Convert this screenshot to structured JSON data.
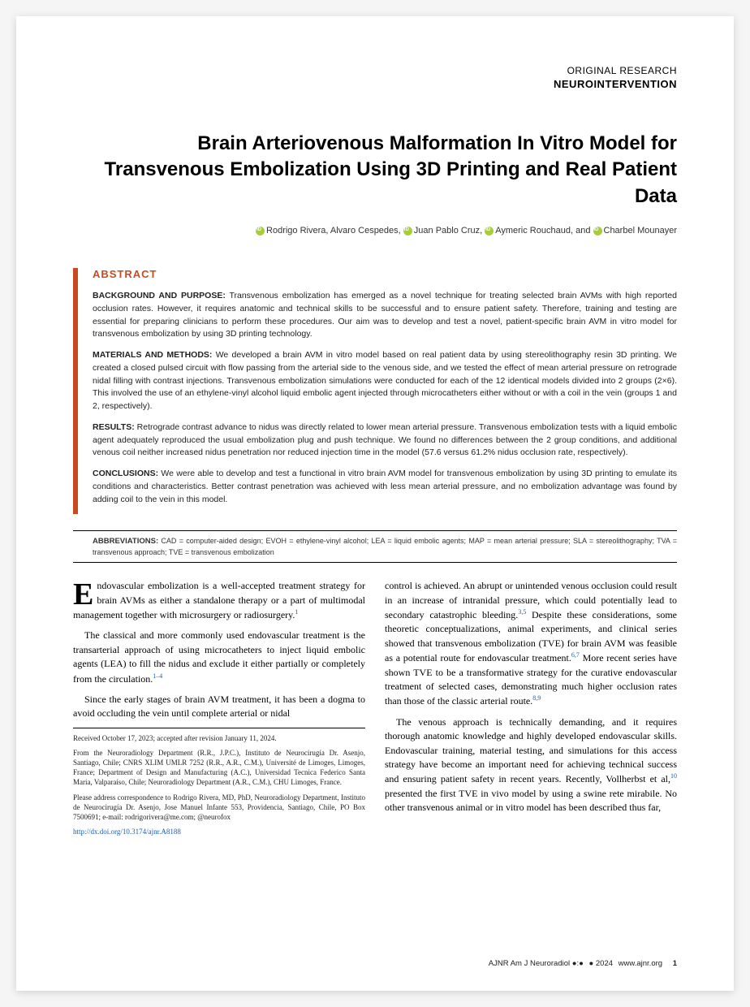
{
  "header": {
    "category": "ORIGINAL RESEARCH",
    "section": "NEUROINTERVENTION"
  },
  "title": "Brain Arteriovenous Malformation In Vitro Model for Transvenous Embolization Using 3D Printing and Real Patient Data",
  "authors": {
    "a1": "Rodrigo Rivera,",
    "a2": " Alvaro Cespedes, ",
    "a3": "Juan Pablo Cruz, ",
    "a4": "Aymeric Rouchaud,",
    "and": " and ",
    "a5": "Charbel Mounayer"
  },
  "abstract": {
    "heading": "ABSTRACT",
    "bg_label": "BACKGROUND AND PURPOSE:",
    "bg_text": " Transvenous embolization has emerged as a novel technique for treating selected brain AVMs with high reported occlusion rates. However, it requires anatomic and technical skills to be successful and to ensure patient safety. Therefore, training and testing are essential for preparing clinicians to perform these procedures. Our aim was to develop and test a novel, patient-specific brain AVM in vitro model for transvenous embolization by using 3D printing technology.",
    "mm_label": "MATERIALS AND METHODS:",
    "mm_text": " We developed a brain AVM in vitro model based on real patient data by using stereolithography resin 3D printing. We created a closed pulsed circuit with flow passing from the arterial side to the venous side, and we tested the effect of mean arterial pressure on retrograde nidal filling with contrast injections. Transvenous embolization simulations were conducted for each of the 12 identical models divided into 2 groups (2×6). This involved the use of an ethylene-vinyl alcohol liquid embolic agent injected through microcatheters either without or with a coil in the vein (groups 1 and 2, respectively).",
    "res_label": "RESULTS:",
    "res_text": " Retrograde contrast advance to nidus was directly related to lower mean arterial pressure. Transvenous embolization tests with a liquid embolic agent adequately reproduced the usual embolization plug and push technique. We found no differences between the 2 group conditions, and additional venous coil neither increased nidus penetration nor reduced injection time in the model (57.6 versus 61.2% nidus occlusion rate, respectively).",
    "con_label": "CONCLUSIONS:",
    "con_text": " We were able to develop and test a functional in vitro brain AVM model for transvenous embolization by using 3D printing to emulate its conditions and characteristics. Better contrast penetration was achieved with less mean arterial pressure, and no embolization advantage was found by adding coil to the vein in this model."
  },
  "abbrev": {
    "label": "ABBREVIATIONS:",
    "text": " CAD = computer-aided design; EVOH = ethylene-vinyl alcohol; LEA = liquid embolic agents; MAP = mean arterial pressure; SLA = stereolithography; TVA = transvenous approach; TVE = transvenous embolization"
  },
  "body": {
    "col1": {
      "p1_dropcap": "E",
      "p1": "ndovascular embolization is a well-accepted treatment strategy for brain AVMs as either a standalone therapy or a part of multimodal management together with microsurgery or radiosurgery.",
      "p1_ref": "1",
      "p2": "The classical and more commonly used endovascular treatment is the transarterial approach of using microcatheters to inject liquid embolic agents (LEA) to fill the nidus and exclude it either partially or completely from the circulation.",
      "p2_ref": "1–4",
      "p3": "Since the early stages of brain AVM treatment, it has been a dogma to avoid occluding the vein until complete arterial or nidal"
    },
    "col2": {
      "p1a": "control is achieved. An abrupt or unintended venous occlusion could result in an increase of intranidal pressure, which could potentially lead to secondary catastrophic bleeding.",
      "p1a_ref": "3,5",
      "p1b": " Despite these considerations, some theoretic conceptualizations, animal experiments, and clinical series showed that transvenous embolization (TVE) for brain AVM was feasible as a potential route for endovascular treatment.",
      "p1b_ref": "6,7",
      "p1c": " More recent series have shown TVE to be a transformative strategy for the curative endovascular treatment of selected cases, demonstrating much higher occlusion rates than those of the classic arterial route.",
      "p1c_ref": "8,9",
      "p2a": "The venous approach is technically demanding, and it requires thorough anatomic knowledge and highly developed endovascular skills. Endovascular training, material testing, and simulations for this access strategy have become an important need for achieving technical success and ensuring patient safety in recent years. Recently, Vollherbst et al,",
      "p2a_ref": "10",
      "p2b": " presented the first TVE in vivo model by using a swine rete mirabile. No other transvenous animal or in vitro model has been described thus far,"
    }
  },
  "footnotes": {
    "received": "Received October 17, 2023; accepted after revision January 11, 2024.",
    "from": "From the Neuroradiology Department (R.R., J.P.C.), Instituto de Neurocirugía Dr. Asenjo, Santiago, Chile; CNRS XLIM UMLR 7252 (R.R., A.R., C.M.), Université de Limoges, Limoges, France; Department of Design and Manufacturing (A.C.), Universidad Tecnica Federico Santa Maria, Valparaíso, Chile; Neuroradiology Department (A.R., C.M.), CHU Limoges, France.",
    "corr": "Please address correspondence to Rodrigo Rivera, MD, PhD, Neuroradiology Department, Instituto de Neurocirugía Dr. Asenjo, Jose Manuel Infante 553, Providencia, Santiago, Chile, PO Box 7500691; e-mail:  rodrigorivera@me.com; @neurofox",
    "doi": "http://dx.doi.org/10.3174/ajnr.A8188"
  },
  "footer": {
    "journal": "AJNR Am J Neuroradiol ●:●",
    "year": "● 2024",
    "site": "www.ajnr.org",
    "page": "1"
  }
}
